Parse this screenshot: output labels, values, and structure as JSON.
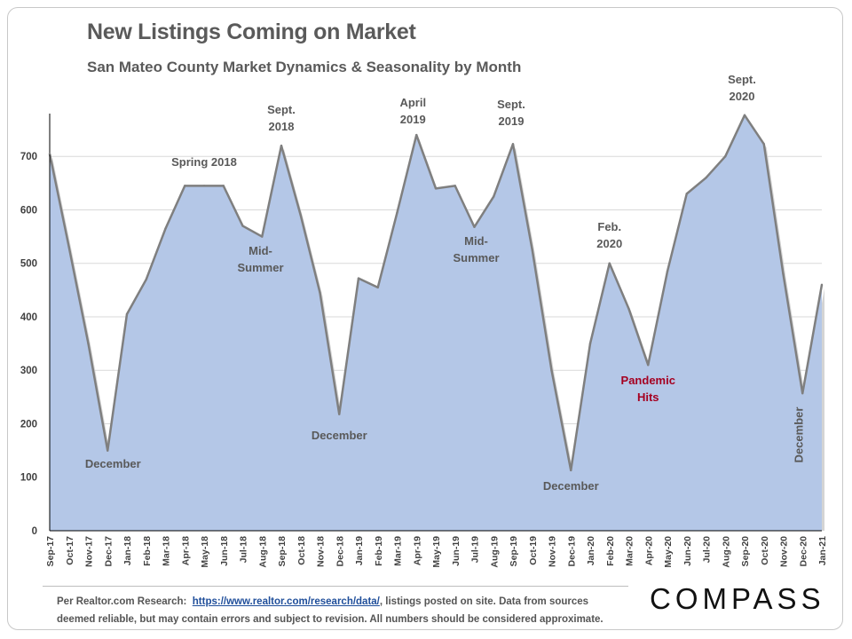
{
  "title": "New Listings Coming on Market",
  "subtitle": "San Mateo County Market Dynamics & Seasonality by Month",
  "chart_data": {
    "type": "area",
    "x": [
      "Sep-17",
      "Oct-17",
      "Nov-17",
      "Dec-17",
      "Jan-18",
      "Feb-18",
      "Mar-18",
      "Apr-18",
      "May-18",
      "Jun-18",
      "Jul-18",
      "Aug-18",
      "Sep-18",
      "Oct-18",
      "Nov-18",
      "Dec-18",
      "Jan-19",
      "Feb-19",
      "Mar-19",
      "Apr-19",
      "May-19",
      "Jun-19",
      "Jul-19",
      "Aug-19",
      "Sep-19",
      "Oct-19",
      "Nov-19",
      "Dec-19",
      "Jan-20",
      "Feb-20",
      "Mar-20",
      "Apr-20",
      "May-20",
      "Jun-20",
      "Jul-20",
      "Aug-20",
      "Sep-20",
      "Oct-20",
      "Nov-20",
      "Dec-20",
      "Jan-21"
    ],
    "values": [
      705,
      530,
      350,
      150,
      405,
      470,
      565,
      645,
      645,
      645,
      570,
      550,
      720,
      590,
      445,
      218,
      472,
      455,
      595,
      740,
      640,
      645,
      568,
      625,
      723,
      525,
      300,
      113,
      350,
      500,
      415,
      310,
      485,
      630,
      660,
      700,
      777,
      723,
      480,
      257,
      460
    ],
    "ylim": [
      0,
      780
    ],
    "yticks": [
      0,
      100,
      200,
      300,
      400,
      500,
      600,
      700
    ],
    "grid": true,
    "fill_color": "#b4c7e7",
    "line_color": "#7f7f7f",
    "annotations": [
      {
        "x": "Dec-17",
        "lines": [
          "December"
        ],
        "color": "#595959"
      },
      {
        "x": "May-18",
        "lines": [
          "Spring 2018"
        ],
        "color": "#595959"
      },
      {
        "x": "Jul-18",
        "lines": [
          "Mid-",
          "Summer"
        ],
        "color": "#595959"
      },
      {
        "x": "Sep-18",
        "lines": [
          "Sept.",
          "2018"
        ],
        "color": "#595959"
      },
      {
        "x": "Dec-18",
        "lines": [
          "December"
        ],
        "color": "#595959"
      },
      {
        "x": "Apr-19",
        "lines": [
          "April",
          "2019"
        ],
        "color": "#595959"
      },
      {
        "x": "Jul-19",
        "lines": [
          "Mid-",
          "Summer"
        ],
        "color": "#595959"
      },
      {
        "x": "Sep-19",
        "lines": [
          "Sept.",
          "2019"
        ],
        "color": "#595959"
      },
      {
        "x": "Dec-19",
        "lines": [
          "December"
        ],
        "color": "#595959"
      },
      {
        "x": "Feb-20",
        "lines": [
          "Feb.",
          "2020"
        ],
        "color": "#595959"
      },
      {
        "x": "Apr-20",
        "lines": [
          "Pandemic",
          "Hits"
        ],
        "color": "#a50021"
      },
      {
        "x": "Sep-20",
        "lines": [
          "Sept.",
          "2020"
        ],
        "color": "#595959"
      },
      {
        "x": "Dec-20",
        "lines": [
          "December"
        ],
        "color": "#595959",
        "rotated": true
      }
    ]
  },
  "footer": {
    "source_prefix": "Per Realtor.com Research:",
    "source_link": "https://www.realtor.com/research/data/",
    "source_suffix": ", listings posted on site. Data from sources",
    "disclaimer": "deemed reliable, but may contain errors and subject to revision. All numbers should be considered approximate.",
    "logo": "COMPASS"
  }
}
